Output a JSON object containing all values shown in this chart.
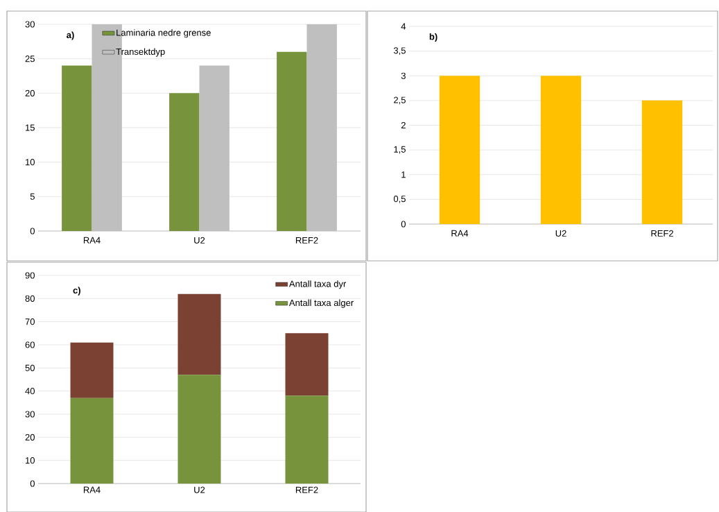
{
  "chart_data": [
    {
      "type": "bar",
      "title": "a)",
      "categories": [
        "RA4",
        "U2",
        "REF2"
      ],
      "series": [
        {
          "name": "Laminaria nedre grense",
          "color": "#77933c",
          "values": [
            24,
            20,
            26
          ]
        },
        {
          "name": "Transektdyp",
          "color": "#bfbfbf",
          "values": [
            30,
            24,
            30
          ]
        }
      ],
      "ylim": [
        0,
        30
      ],
      "yticks": [
        0,
        5,
        10,
        15,
        20,
        25,
        30
      ],
      "grid": "y",
      "legend": "top"
    },
    {
      "type": "bar",
      "title": "b)",
      "categories": [
        "RA4",
        "U2",
        "REF2"
      ],
      "values": [
        3,
        3,
        2.5
      ],
      "color": "#ffc000",
      "ylim": [
        0,
        4
      ],
      "yticks": [
        0,
        {
          "value": 0.5,
          "label": "0,5"
        },
        1,
        {
          "value": 1.5,
          "label": "1,5"
        },
        2,
        {
          "value": 2.5,
          "label": "2,5"
        },
        3,
        {
          "value": 3.5,
          "label": "3,5"
        },
        4
      ],
      "grid": "y"
    },
    {
      "type": "bar",
      "title": "c)",
      "categories": [
        "RA4",
        "U2",
        "REF2"
      ],
      "stacked": true,
      "series": [
        {
          "name": "Antall taxa alger",
          "color": "#77933c",
          "values": [
            37,
            47,
            38
          ]
        },
        {
          "name": "Antall taxa dyr",
          "color": "#7b4234",
          "values": [
            24,
            35,
            27
          ]
        }
      ],
      "ylim": [
        0,
        90
      ],
      "yticks": [
        0,
        10,
        20,
        30,
        40,
        50,
        60,
        70,
        80,
        90
      ],
      "grid": "y",
      "legend": "top right"
    }
  ]
}
